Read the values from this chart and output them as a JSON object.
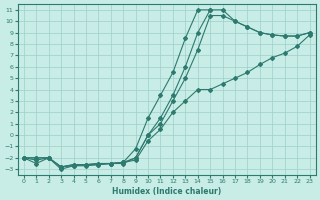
{
  "title": "",
  "xlabel": "Humidex (Indice chaleur)",
  "ylabel": "",
  "xlim": [
    -0.5,
    23.5
  ],
  "ylim": [
    -3.5,
    11.5
  ],
  "xticks": [
    0,
    1,
    2,
    3,
    4,
    5,
    6,
    7,
    8,
    9,
    10,
    11,
    12,
    13,
    14,
    15,
    16,
    17,
    18,
    19,
    20,
    21,
    22,
    23
  ],
  "yticks": [
    -3,
    -2,
    -1,
    0,
    1,
    2,
    3,
    4,
    5,
    6,
    7,
    8,
    9,
    10,
    11
  ],
  "bg_color": "#c8ece6",
  "line_color": "#2d7a6e",
  "grid_color": "#9ecfca",
  "line1_x": [
    0,
    1,
    2,
    3,
    4,
    5,
    6,
    7,
    8,
    9,
    10,
    11,
    12,
    13,
    14,
    15,
    16,
    17,
    18,
    19,
    20,
    21,
    22,
    23
  ],
  "line1_y": [
    -2,
    -2.5,
    -2,
    -3,
    -2.7,
    -2.6,
    -2.6,
    -2.5,
    -2.5,
    -2,
    0,
    1.5,
    3.5,
    6,
    9,
    11,
    11,
    10,
    9.5,
    9,
    8.8,
    8.7,
    8.7,
    9
  ],
  "line2_x": [
    0,
    1,
    2,
    3,
    4,
    5,
    6,
    7,
    8,
    9,
    10,
    11,
    12,
    13,
    14,
    15,
    16,
    17,
    18,
    19,
    20,
    21,
    22,
    23
  ],
  "line2_y": [
    -2,
    -2,
    -2,
    -2.8,
    -2.6,
    -2.6,
    -2.5,
    -2.5,
    -2.4,
    -2.2,
    -0.5,
    0.5,
    2,
    3,
    4,
    4,
    4.5,
    5,
    5.5,
    6.2,
    6.8,
    7.2,
    7.8,
    8.8
  ],
  "line3_x": [
    0,
    1,
    2,
    3,
    4,
    5,
    6,
    7,
    8,
    9,
    10,
    11,
    12,
    13,
    14,
    15,
    16,
    17,
    18,
    19,
    20,
    21,
    22,
    23
  ],
  "line3_y": [
    -2,
    -2,
    -2,
    -2.8,
    -2.6,
    -2.6,
    -2.5,
    -2.5,
    -2.4,
    -2.0,
    0,
    1,
    3,
    5,
    7.5,
    10.5,
    10.5,
    10,
    9.5,
    9,
    8.8,
    8.7,
    8.7,
    9
  ],
  "line4_x": [
    0,
    1,
    2,
    3,
    4,
    5,
    6,
    7,
    8,
    9,
    10,
    11,
    12,
    13,
    14,
    15
  ],
  "line4_y": [
    -2,
    -2.2,
    -2,
    -2.8,
    -2.7,
    -2.7,
    -2.6,
    -2.5,
    -2.4,
    -1.2,
    1.5,
    3.5,
    5.5,
    8.5,
    11,
    11
  ]
}
